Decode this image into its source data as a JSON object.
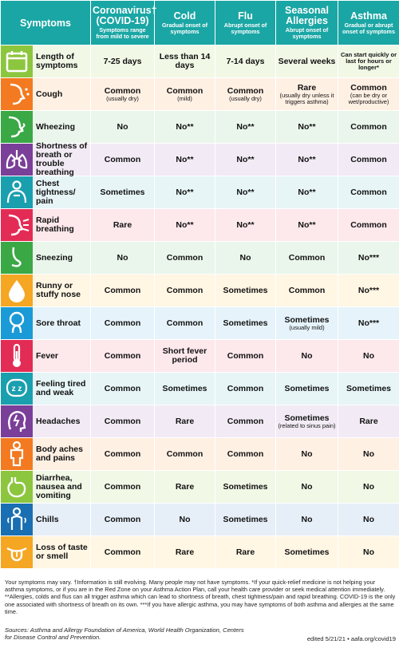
{
  "header": {
    "symptoms": "Symptoms",
    "columns": [
      {
        "name": "Coronavirus† (COVID-19)",
        "sub": "Symptoms range from mild to severe"
      },
      {
        "name": "Cold",
        "sub": "Gradual onset of symptoms"
      },
      {
        "name": "Flu",
        "sub": "Abrupt onset of symptoms"
      },
      {
        "name": "Seasonal Allergies",
        "sub": "Abrupt onset of symptoms"
      },
      {
        "name": "Asthma",
        "sub": "Gradual or abrupt onset of symptoms"
      }
    ]
  },
  "colors": {
    "header": "#1aa6a4",
    "icons": [
      "#8cc63e",
      "#f37a21",
      "#3aa845",
      "#7a3f98",
      "#1a9faf",
      "#e32c55",
      "#3aa845",
      "#f5a623",
      "#1a9ad6",
      "#e32c55",
      "#1a9faf",
      "#7a3f98",
      "#f37a21",
      "#8cc63e",
      "#1a6fb3",
      "#f5a623"
    ],
    "rows": [
      "#f1f8e6",
      "#fff0e4",
      "#eaf6ec",
      "#f2ebf5",
      "#e7f5f7",
      "#fde8ec",
      "#eaf6ec",
      "#fff6e4",
      "#e6f3fa",
      "#fde8ec",
      "#e7f5f7",
      "#f2ebf5",
      "#fff0e4",
      "#f1f8e6",
      "#e6eef7",
      "#fff6e4"
    ]
  },
  "rows": [
    {
      "icon": "calendar-icon",
      "symptom": "Length of symptoms",
      "cells": [
        {
          "main": "7-25 days",
          "note": ""
        },
        {
          "main": "Less than 14 days",
          "note": ""
        },
        {
          "main": "7-14 days",
          "note": ""
        },
        {
          "main": "Several weeks",
          "note": ""
        },
        {
          "main": "",
          "note": "Can start quickly or last for hours or longer*"
        }
      ]
    },
    {
      "icon": "cough-icon",
      "symptom": "Cough",
      "cells": [
        {
          "main": "Common",
          "note": "(usually dry)"
        },
        {
          "main": "Common",
          "note": "(mild)"
        },
        {
          "main": "Common",
          "note": "(usually dry)"
        },
        {
          "main": "Rare",
          "note": "(usually dry unless it triggers asthma)"
        },
        {
          "main": "Common",
          "note": "(can be dry or wet/productive)"
        }
      ]
    },
    {
      "icon": "wheezing-icon",
      "symptom": "Wheezing",
      "cells": [
        {
          "main": "No",
          "note": ""
        },
        {
          "main": "No**",
          "note": ""
        },
        {
          "main": "No**",
          "note": ""
        },
        {
          "main": "No**",
          "note": ""
        },
        {
          "main": "Common",
          "note": ""
        }
      ]
    },
    {
      "icon": "lungs-icon",
      "symptom": "Shortness of breath or trouble breathing",
      "cells": [
        {
          "main": "Common",
          "note": ""
        },
        {
          "main": "No**",
          "note": ""
        },
        {
          "main": "No**",
          "note": ""
        },
        {
          "main": "No**",
          "note": ""
        },
        {
          "main": "Common",
          "note": ""
        }
      ]
    },
    {
      "icon": "chest-icon",
      "symptom": "Chest tightness/ pain",
      "cells": [
        {
          "main": "Sometimes",
          "note": ""
        },
        {
          "main": "No**",
          "note": ""
        },
        {
          "main": "No**",
          "note": ""
        },
        {
          "main": "No**",
          "note": ""
        },
        {
          "main": "Common",
          "note": ""
        }
      ]
    },
    {
      "icon": "rapid-breathing-icon",
      "symptom": "Rapid breathing",
      "cells": [
        {
          "main": "Rare",
          "note": ""
        },
        {
          "main": "No**",
          "note": ""
        },
        {
          "main": "No**",
          "note": ""
        },
        {
          "main": "No**",
          "note": ""
        },
        {
          "main": "Common",
          "note": ""
        }
      ]
    },
    {
      "icon": "sneezing-icon",
      "symptom": "Sneezing",
      "cells": [
        {
          "main": "No",
          "note": ""
        },
        {
          "main": "Common",
          "note": ""
        },
        {
          "main": "No",
          "note": ""
        },
        {
          "main": "Common",
          "note": ""
        },
        {
          "main": "No***",
          "note": ""
        }
      ]
    },
    {
      "icon": "runny-nose-icon",
      "symptom": "Runny or stuffy nose",
      "cells": [
        {
          "main": "Common",
          "note": ""
        },
        {
          "main": "Common",
          "note": ""
        },
        {
          "main": "Sometimes",
          "note": ""
        },
        {
          "main": "Common",
          "note": ""
        },
        {
          "main": "No***",
          "note": ""
        }
      ]
    },
    {
      "icon": "sore-throat-icon",
      "symptom": "Sore throat",
      "cells": [
        {
          "main": "Common",
          "note": ""
        },
        {
          "main": "Common",
          "note": ""
        },
        {
          "main": "Sometimes",
          "note": ""
        },
        {
          "main": "Sometimes",
          "note": "(usually mild)"
        },
        {
          "main": "No***",
          "note": ""
        }
      ]
    },
    {
      "icon": "thermometer-icon",
      "symptom": "Fever",
      "cells": [
        {
          "main": "Common",
          "note": ""
        },
        {
          "main": "Short fever period",
          "note": ""
        },
        {
          "main": "Common",
          "note": ""
        },
        {
          "main": "No",
          "note": ""
        },
        {
          "main": "No",
          "note": ""
        }
      ]
    },
    {
      "icon": "tired-icon",
      "symptom": "Feeling tired and weak",
      "cells": [
        {
          "main": "Common",
          "note": ""
        },
        {
          "main": "Sometimes",
          "note": ""
        },
        {
          "main": "Common",
          "note": ""
        },
        {
          "main": "Sometimes",
          "note": ""
        },
        {
          "main": "Sometimes",
          "note": ""
        }
      ]
    },
    {
      "icon": "headache-icon",
      "symptom": "Headaches",
      "cells": [
        {
          "main": "Common",
          "note": ""
        },
        {
          "main": "Rare",
          "note": ""
        },
        {
          "main": "Common",
          "note": ""
        },
        {
          "main": "Sometimes",
          "note": "(related to sinus pain)"
        },
        {
          "main": "Rare",
          "note": ""
        }
      ]
    },
    {
      "icon": "body-aches-icon",
      "symptom": "Body aches and pains",
      "cells": [
        {
          "main": "Common",
          "note": ""
        },
        {
          "main": "Common",
          "note": ""
        },
        {
          "main": "Common",
          "note": ""
        },
        {
          "main": "No",
          "note": ""
        },
        {
          "main": "No",
          "note": ""
        }
      ]
    },
    {
      "icon": "stomach-icon",
      "symptom": "Diarrhea, nausea and vomiting",
      "cells": [
        {
          "main": "Common",
          "note": ""
        },
        {
          "main": "Rare",
          "note": ""
        },
        {
          "main": "Sometimes",
          "note": ""
        },
        {
          "main": "No",
          "note": ""
        },
        {
          "main": "No",
          "note": ""
        }
      ]
    },
    {
      "icon": "chills-icon",
      "symptom": "Chills",
      "cells": [
        {
          "main": "Common",
          "note": ""
        },
        {
          "main": "No",
          "note": ""
        },
        {
          "main": "Sometimes",
          "note": ""
        },
        {
          "main": "No",
          "note": ""
        },
        {
          "main": "No",
          "note": ""
        }
      ]
    },
    {
      "icon": "tongue-icon",
      "symptom": "Loss of taste or smell",
      "cells": [
        {
          "main": "Common",
          "note": ""
        },
        {
          "main": "Rare",
          "note": ""
        },
        {
          "main": "Rare",
          "note": ""
        },
        {
          "main": "Sometimes",
          "note": ""
        },
        {
          "main": "No",
          "note": ""
        }
      ]
    }
  ],
  "footer": {
    "note": "Your symptoms may vary. †Information is still evolving. Many people may not have symptoms. *If your quick-relief medicine is not helping your asthma symptoms, or if you are in the Red Zone on your Asthma Action Plan, call your health care provider or seek medical attention immediately. **Allergies, colds and flus can all trigger asthma which can lead to shortness of breath, chest tightness/pain and rapid breathing. COVID-19 is the only one associated with shortness of breath on its own. ***If you have allergic asthma, you may have symptoms of both asthma and allergies at the same time.",
    "sources": "Sources: Asthma and Allergy Foundation of America, World Health Organization, Centers for Disease Control and Prevention.",
    "edited": "edited 5/21/21 • aafa.org/covid19"
  }
}
